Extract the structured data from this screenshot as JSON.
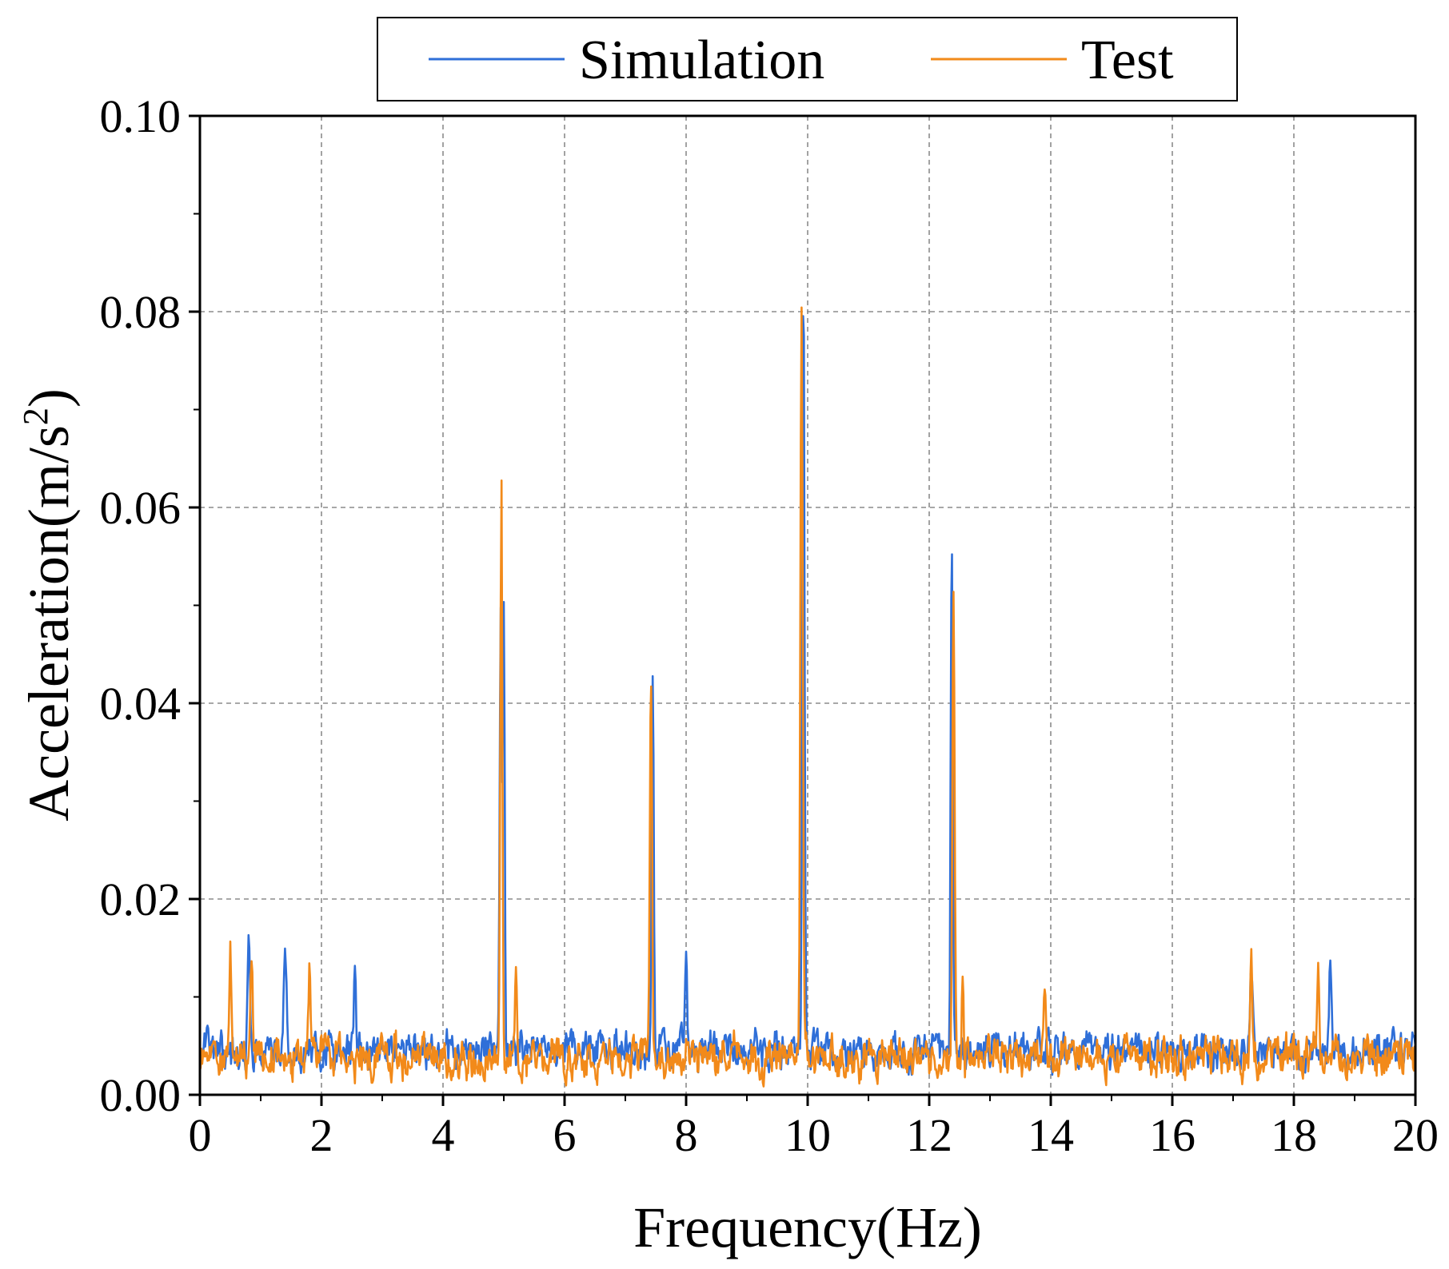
{
  "chart_data": {
    "type": "line",
    "title": "",
    "xlabel": "Frequency(Hz)",
    "ylabel_main": "Acceleration(m/s",
    "ylabel_sup": "2",
    "ylabel_close": ")",
    "xlim": [
      0,
      20
    ],
    "ylim": [
      0,
      0.1
    ],
    "x_ticks": [
      "0",
      "2",
      "4",
      "6",
      "8",
      "10",
      "12",
      "14",
      "16",
      "18",
      "20"
    ],
    "y_ticks": [
      "0.00",
      "0.02",
      "0.04",
      "0.06",
      "0.08",
      "0.10"
    ],
    "grid": true,
    "legend_position": "top-center",
    "series": [
      {
        "name": "Simulation",
        "color": "#2f6fd8",
        "baseline": 0.0045,
        "noise": 0.0028,
        "seed": 7,
        "peaks": [
          {
            "x": 0.8,
            "y": 0.013,
            "w": 0.04
          },
          {
            "x": 1.4,
            "y": 0.011,
            "w": 0.05
          },
          {
            "x": 2.55,
            "y": 0.0105,
            "w": 0.03
          },
          {
            "x": 4.95,
            "y": 0.05,
            "w": 0.035
          },
          {
            "x": 5.0,
            "y": 0.048,
            "w": 0.03
          },
          {
            "x": 7.45,
            "y": 0.04,
            "w": 0.035
          },
          {
            "x": 8.0,
            "y": 0.0115,
            "w": 0.03
          },
          {
            "x": 9.93,
            "y": 0.083,
            "w": 0.035
          },
          {
            "x": 12.37,
            "y": 0.056,
            "w": 0.033
          },
          {
            "x": 17.3,
            "y": 0.009,
            "w": 0.04
          },
          {
            "x": 18.6,
            "y": 0.009,
            "w": 0.04
          }
        ]
      },
      {
        "name": "Test",
        "color": "#f28a1a",
        "baseline": 0.0038,
        "noise": 0.003,
        "seed": 19,
        "peaks": [
          {
            "x": 0.5,
            "y": 0.013,
            "w": 0.03
          },
          {
            "x": 0.85,
            "y": 0.01,
            "w": 0.04
          },
          {
            "x": 1.8,
            "y": 0.009,
            "w": 0.04
          },
          {
            "x": 4.96,
            "y": 0.06,
            "w": 0.035
          },
          {
            "x": 5.2,
            "y": 0.011,
            "w": 0.03
          },
          {
            "x": 7.42,
            "y": 0.0425,
            "w": 0.035
          },
          {
            "x": 9.9,
            "y": 0.081,
            "w": 0.04
          },
          {
            "x": 12.4,
            "y": 0.052,
            "w": 0.035
          },
          {
            "x": 12.55,
            "y": 0.01,
            "w": 0.03
          },
          {
            "x": 13.9,
            "y": 0.009,
            "w": 0.04
          },
          {
            "x": 17.3,
            "y": 0.011,
            "w": 0.035
          },
          {
            "x": 18.4,
            "y": 0.0085,
            "w": 0.04
          }
        ]
      }
    ]
  }
}
